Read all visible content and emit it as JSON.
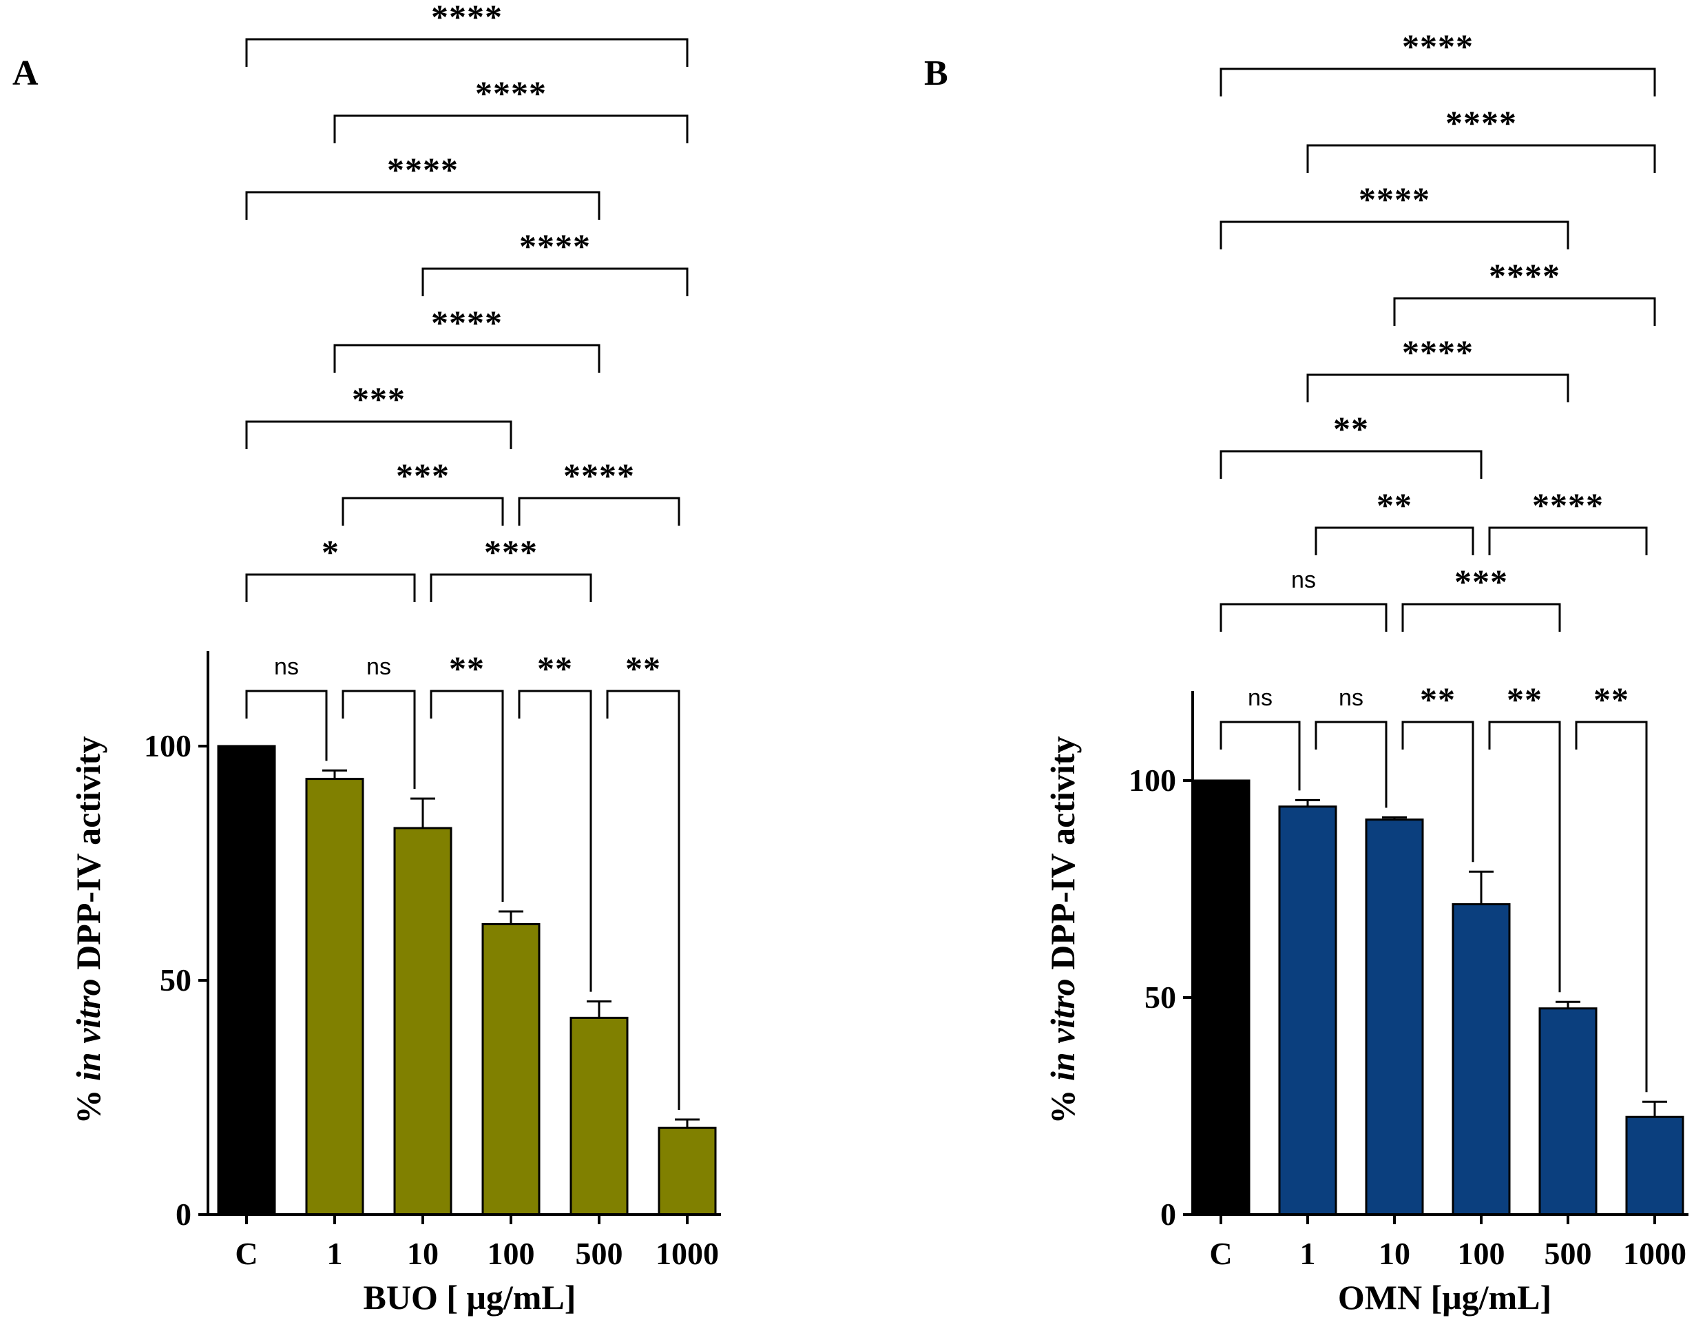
{
  "colors": {
    "control": "#000000",
    "buo": "#808000",
    "omn": "#0b3f7e",
    "line": "#000000"
  },
  "chart_data": [
    {
      "panel": "A",
      "type": "bar",
      "categories": [
        "C",
        "1",
        "10",
        "100",
        "500",
        "1000"
      ],
      "values": [
        100,
        93,
        82.5,
        62,
        42,
        18.5
      ],
      "errors": [
        0,
        1.8,
        6.3,
        2.7,
        3.5,
        1.8
      ],
      "bar_colors": [
        "#000000",
        "#808000",
        "#808000",
        "#808000",
        "#808000",
        "#808000"
      ],
      "xlabel": "BUO [ μg/mL]",
      "ylabel_pre": "% ",
      "ylabel_italic": "in vitro",
      "ylabel_post": " DPP-IV activity",
      "ylim": [
        0,
        120
      ],
      "yticks": [
        "0",
        "50",
        "100"
      ],
      "ytick_values": [
        0,
        50,
        100
      ],
      "comparisons": [
        {
          "a": 0,
          "b": 1,
          "label": "ns"
        },
        {
          "a": 1,
          "b": 2,
          "label": "ns"
        },
        {
          "a": 2,
          "b": 3,
          "label": "**"
        },
        {
          "a": 3,
          "b": 4,
          "label": "**"
        },
        {
          "a": 4,
          "b": 5,
          "label": "**"
        },
        {
          "a": 0,
          "b": 2,
          "label": "*"
        },
        {
          "a": 2,
          "b": 4,
          "label": "***"
        },
        {
          "a": 1,
          "b": 3,
          "label": "***"
        },
        {
          "a": 3,
          "b": 5,
          "label": "****"
        },
        {
          "a": 0,
          "b": 3,
          "label": "***"
        },
        {
          "a": 1,
          "b": 4,
          "label": "****"
        },
        {
          "a": 2,
          "b": 5,
          "label": "****"
        },
        {
          "a": 0,
          "b": 4,
          "label": "****"
        },
        {
          "a": 1,
          "b": 5,
          "label": "****"
        },
        {
          "a": 0,
          "b": 5,
          "label": "****"
        }
      ]
    },
    {
      "panel": "B",
      "type": "bar",
      "categories": [
        "C",
        "1",
        "10",
        "100",
        "500",
        "1000"
      ],
      "values": [
        100,
        94,
        91,
        71.5,
        47.5,
        22.5
      ],
      "errors": [
        0,
        1.5,
        0.5,
        7.5,
        1.5,
        3.5
      ],
      "bar_colors": [
        "#000000",
        "#0b3f7e",
        "#0b3f7e",
        "#0b3f7e",
        "#0b3f7e",
        "#0b3f7e"
      ],
      "xlabel": "OMN [μg/mL]",
      "ylabel_pre": "% ",
      "ylabel_italic": "in vitro",
      "ylabel_post": " DPP-IV activity",
      "ylim": [
        0,
        120
      ],
      "yticks": [
        "0",
        "50",
        "100"
      ],
      "ytick_values": [
        0,
        50,
        100
      ],
      "comparisons": [
        {
          "a": 0,
          "b": 1,
          "label": "ns"
        },
        {
          "a": 1,
          "b": 2,
          "label": "ns"
        },
        {
          "a": 2,
          "b": 3,
          "label": "**"
        },
        {
          "a": 3,
          "b": 4,
          "label": "**"
        },
        {
          "a": 4,
          "b": 5,
          "label": "**"
        },
        {
          "a": 0,
          "b": 2,
          "label": "ns"
        },
        {
          "a": 2,
          "b": 4,
          "label": "***"
        },
        {
          "a": 1,
          "b": 3,
          "label": "**"
        },
        {
          "a": 3,
          "b": 5,
          "label": "****"
        },
        {
          "a": 0,
          "b": 3,
          "label": "**"
        },
        {
          "a": 1,
          "b": 4,
          "label": "****"
        },
        {
          "a": 2,
          "b": 5,
          "label": "****"
        },
        {
          "a": 0,
          "b": 4,
          "label": "****"
        },
        {
          "a": 1,
          "b": 5,
          "label": "****"
        },
        {
          "a": 0,
          "b": 5,
          "label": "****"
        }
      ]
    }
  ]
}
